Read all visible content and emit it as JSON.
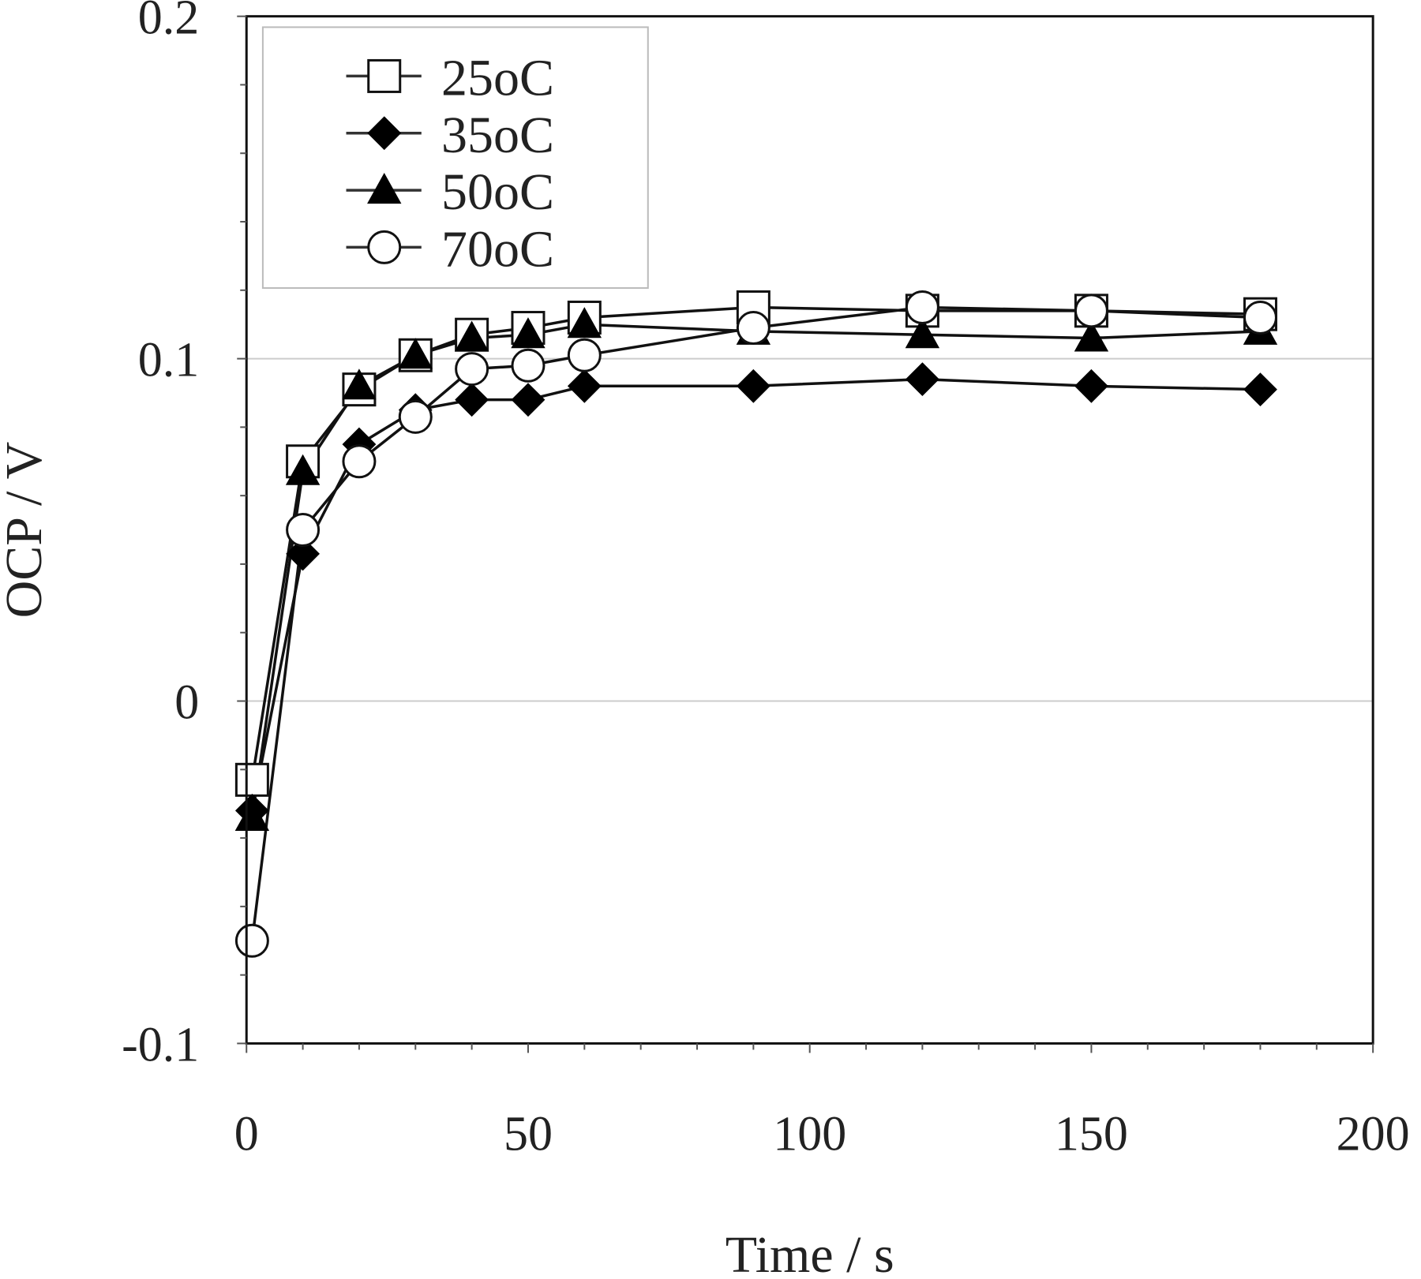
{
  "chart_data": {
    "type": "line",
    "title": "",
    "xlabel": "Time / s",
    "ylabel": "OCP / V",
    "xlim": [
      0,
      200
    ],
    "ylim": [
      -0.1,
      0.2
    ],
    "x_ticks": [
      0,
      50,
      100,
      150,
      200
    ],
    "x_tick_labels": [
      "0",
      "50",
      "100",
      "150",
      "200"
    ],
    "y_ticks": [
      -0.1,
      0,
      0.1,
      0.2
    ],
    "y_tick_labels": [
      "-0.1",
      "0",
      "0.1",
      "0.2"
    ],
    "grid": {
      "horizontal": [
        0,
        0.1
      ],
      "color": "#cccccc"
    },
    "legend_position": "upper-left",
    "x": [
      1,
      10,
      20,
      30,
      40,
      50,
      60,
      90,
      120,
      150,
      180
    ],
    "series": [
      {
        "name": "25oC",
        "marker": "square-open",
        "values": [
          -0.023,
          0.07,
          0.091,
          0.101,
          0.107,
          0.109,
          0.112,
          0.115,
          0.114,
          0.114,
          0.113
        ]
      },
      {
        "name": "35oC",
        "marker": "diamond-filled",
        "values": [
          -0.032,
          0.043,
          0.075,
          0.085,
          0.088,
          0.088,
          0.092,
          0.092,
          0.094,
          0.092,
          0.091
        ]
      },
      {
        "name": "50oC",
        "marker": "triangle-filled",
        "values": [
          -0.034,
          0.067,
          0.092,
          0.101,
          0.106,
          0.107,
          0.11,
          0.108,
          0.107,
          0.106,
          0.108
        ]
      },
      {
        "name": "70oC",
        "marker": "circle-open",
        "values": [
          -0.07,
          0.05,
          0.07,
          0.083,
          0.097,
          0.098,
          0.101,
          0.109,
          0.115,
          0.114,
          0.112
        ]
      }
    ]
  },
  "legend": {
    "items": [
      {
        "label": "25oC",
        "icon": "square-open-icon"
      },
      {
        "label": "35oC",
        "icon": "diamond-filled-icon"
      },
      {
        "label": "50oC",
        "icon": "triangle-filled-icon"
      },
      {
        "label": "70oC",
        "icon": "circle-open-icon"
      }
    ]
  },
  "axes": {
    "x_title": "Time / s",
    "y_title": "OCP / V"
  }
}
